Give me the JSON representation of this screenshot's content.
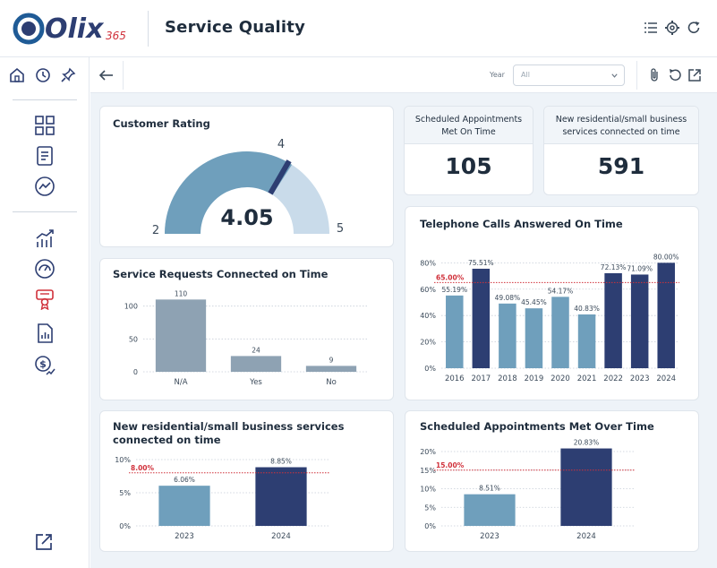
{
  "header": {
    "logo_text": "Olix",
    "logo_suffix": "365",
    "page_title": "Service Quality",
    "icons": [
      "list-icon",
      "gear-icon",
      "refresh-icon"
    ]
  },
  "toolbar": {
    "year_label": "Year",
    "year_value": "All"
  },
  "colors": {
    "dark_navy": "#2d3e72",
    "steel_blue": "#6f9fbc",
    "gray_bar": "#8ea2b3",
    "light_blue": "#c9dbea",
    "target_red": "#d0303a"
  },
  "customer_rating": {
    "title": "Customer Rating",
    "value": "4.05",
    "min_label": "2",
    "max_label": "5",
    "target_label": "4",
    "chart_data": {
      "type": "gauge",
      "min": 2,
      "max": 5,
      "value": 4.05,
      "target": 4
    }
  },
  "kpi_appointments": {
    "title": "Scheduled Appointments Met On Time",
    "value": "105"
  },
  "kpi_services": {
    "title": "New residential/small business services connected on time",
    "value": "591"
  },
  "service_requests": {
    "title": "Service Requests Connected on Time",
    "chart_data": {
      "type": "bar",
      "categories": [
        "N/A",
        "Yes",
        "No"
      ],
      "values": [
        110,
        24,
        9
      ],
      "value_labels": [
        "110",
        "24",
        "9"
      ],
      "yticks": [
        "0",
        "50",
        "100"
      ],
      "ylim": [
        0,
        120
      ]
    }
  },
  "telephone_calls": {
    "title": "Telephone Calls Answered On Time",
    "chart_data": {
      "type": "bar",
      "categories": [
        "2016",
        "2017",
        "2018",
        "2019",
        "2020",
        "2021",
        "2022",
        "2023",
        "2024"
      ],
      "values": [
        55.19,
        75.51,
        49.08,
        45.45,
        54.17,
        40.83,
        72.13,
        71.09,
        80.0
      ],
      "value_labels": [
        "55.19%",
        "75.51%",
        "49.08%",
        "45.45%",
        "54.17%",
        "40.83%",
        "72.13%",
        "71.09%",
        "80.00%"
      ],
      "target": 65,
      "target_label": "65.00%",
      "yticks": [
        "0%",
        "20%",
        "40%",
        "60%",
        "80%"
      ],
      "ylim": [
        0,
        85
      ]
    }
  },
  "new_services": {
    "title": "New residential/small business services connected on time",
    "chart_data": {
      "type": "bar",
      "categories": [
        "2023",
        "2024"
      ],
      "values": [
        6.06,
        8.85
      ],
      "value_labels": [
        "6.06%",
        "8.85%"
      ],
      "target": 8,
      "target_label": "8.00%",
      "yticks": [
        "0%",
        "5%",
        "10%"
      ],
      "ylim": [
        0,
        10
      ]
    }
  },
  "appointments_over_time": {
    "title": "Scheduled Appointments Met Over Time",
    "chart_data": {
      "type": "bar",
      "categories": [
        "2023",
        "2024"
      ],
      "values": [
        8.51,
        20.83
      ],
      "value_labels": [
        "8.51%",
        "20.83%"
      ],
      "target": 15,
      "target_label": "15.00%",
      "yticks": [
        "0%",
        "5%",
        "10%",
        "15%",
        "20%"
      ],
      "ylim": [
        0,
        20
      ]
    }
  }
}
